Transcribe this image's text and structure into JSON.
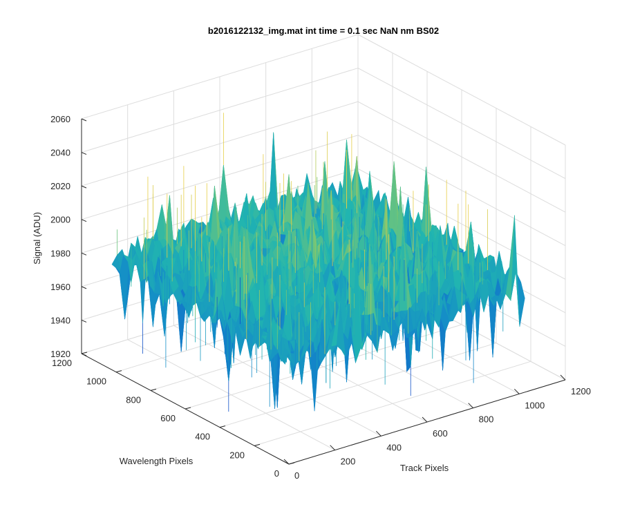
{
  "chart_data": {
    "type": "surface",
    "title": "b2016122132_img.mat int time = 0.1 sec  NaN nm BS02",
    "xlabel": "Track Pixels",
    "ylabel": "Wavelength Pixels",
    "zlabel": "Signal (ADU)",
    "xlim": [
      0,
      1200
    ],
    "ylim": [
      0,
      1200
    ],
    "zlim": [
      1920,
      2060
    ],
    "x_ticks": [
      "0",
      "200",
      "400",
      "600",
      "800",
      "1000",
      "1200"
    ],
    "y_ticks": [
      "0",
      "200",
      "400",
      "600",
      "800",
      "1000",
      "1200"
    ],
    "z_ticks": [
      "1920",
      "1940",
      "1960",
      "1980",
      "2000",
      "2020",
      "2040",
      "2060"
    ],
    "grid": true,
    "colormap": "parula",
    "surface_extent": {
      "x": [
        0,
        1024
      ],
      "y": [
        0,
        1024
      ]
    },
    "signal_typical_range": [
      1960,
      2010
    ],
    "signal_min_approx": 1928,
    "signal_max_approx": 2052,
    "mean_signal_approx": 1985,
    "colors": {
      "low": "#0f70c8",
      "mid": "#21b5b0",
      "high": "#d6c94a",
      "grid": "#dcdcdc",
      "axis": "#262626"
    }
  }
}
